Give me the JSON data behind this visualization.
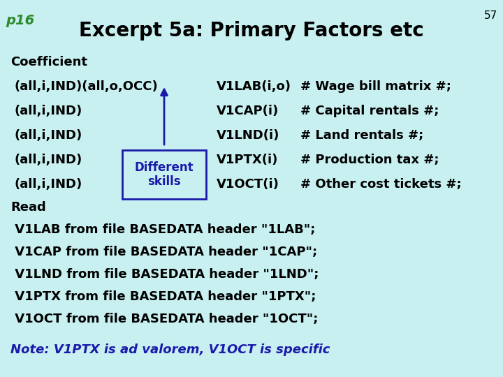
{
  "bg_color": "#c8f0f0",
  "title": "Excerpt 5a: Primary Factors etc",
  "title_fontsize": 20,
  "title_color": "#000000",
  "page_label": "p16",
  "page_label_color": "#2d8a2d",
  "page_label_fontsize": 14,
  "page_num": "57",
  "page_num_color": "#000000",
  "page_num_fontsize": 11,
  "text_color": "#000000",
  "text_fontsize": 13,
  "note_text": "Note: V1PTX is ad valorem, V1OCT is specific",
  "note_color": "#1a1aaa",
  "note_fontsize": 13,
  "box_text": "Different\nskills",
  "box_text_color": "#1a1aaa",
  "box_edge_color": "#1a1aaa",
  "arrow_color": "#1a1aaa"
}
